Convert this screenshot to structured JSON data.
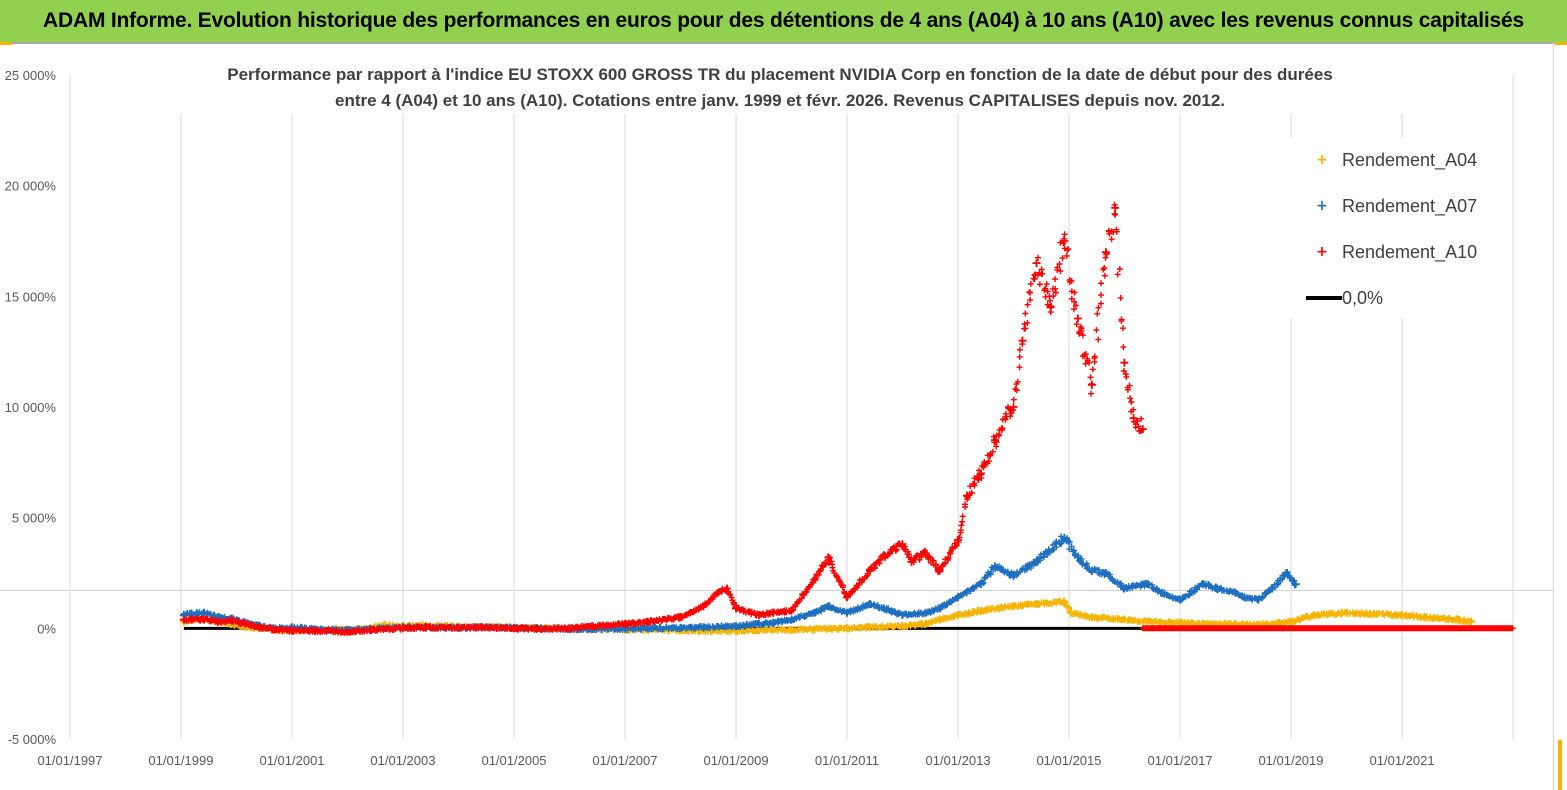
{
  "header": {
    "title": "ADAM Informe. Evolution historique des performances en euros pour des détentions de 4 ans (A04) à 10 ans (A10) avec les revenus connus capitalisés"
  },
  "colors": {
    "header_bg": "#92d050",
    "accent": "#f4b400"
  },
  "chart_data": {
    "type": "scatter",
    "title_lines": [
      "Performance par rapport à l'indice EU STOXX 600 GROSS TR  du placement NVIDIA Corp en fonction de la date de début pour des durées",
      "entre 4 (A04) et 10 ans (A10). Cotations entre janv. 1999 et févr. 2026. Revenus CAPITALISES depuis nov. 2012."
    ],
    "x_axis": {
      "type": "date",
      "range": [
        "1997-01-01",
        "2023-01-01"
      ],
      "ticks": [
        "1997-01-01",
        "1999-01-01",
        "2001-01-01",
        "2003-01-01",
        "2005-01-01",
        "2007-01-01",
        "2009-01-01",
        "2011-01-01",
        "2013-01-01",
        "2015-01-01",
        "2017-01-01",
        "2019-01-01",
        "2021-01-01"
      ],
      "tick_labels": [
        "01/01/1997",
        "01/01/1999",
        "01/01/2001",
        "01/01/2003",
        "01/01/2005",
        "01/01/2007",
        "01/01/2009",
        "01/01/2011",
        "01/01/2013",
        "01/01/2015",
        "01/01/2017",
        "01/01/2019",
        "01/01/2021"
      ]
    },
    "y_axis": {
      "ylim": [
        -5000,
        25000
      ],
      "ticks": [
        -5000,
        0,
        5000,
        10000,
        15000,
        20000,
        25000
      ],
      "tick_labels": [
        "-5 000%",
        "0%",
        "5 000%",
        "10 000%",
        "15 000%",
        "20 000%",
        "25 000%"
      ],
      "unit": "%"
    },
    "grid": {
      "horizontal": false,
      "vertical": true
    },
    "legend": {
      "position": "right"
    },
    "series": [
      {
        "name": "Rendement_A04",
        "color": "#f4b400",
        "marker": "+",
        "points": [
          [
            "1999-01-20",
            300
          ],
          [
            "1999-03-01",
            380
          ],
          [
            "1999-06-01",
            450
          ],
          [
            "1999-09-01",
            300
          ],
          [
            "1999-12-01",
            200
          ],
          [
            "2000-03-01",
            80
          ],
          [
            "2000-06-01",
            0
          ],
          [
            "2000-09-01",
            -60
          ],
          [
            "2001-01-01",
            -100
          ],
          [
            "2001-06-01",
            -80
          ],
          [
            "2002-01-01",
            -50
          ],
          [
            "2002-06-01",
            0
          ],
          [
            "2002-09-01",
            150
          ],
          [
            "2003-01-01",
            100
          ],
          [
            "2003-06-01",
            120
          ],
          [
            "2004-01-01",
            80
          ],
          [
            "2004-06-01",
            60
          ],
          [
            "2005-01-01",
            30
          ],
          [
            "2005-06-01",
            10
          ],
          [
            "2006-01-01",
            0
          ],
          [
            "2006-06-01",
            -20
          ],
          [
            "2007-01-01",
            -50
          ],
          [
            "2007-06-01",
            -60
          ],
          [
            "2008-01-01",
            -80
          ],
          [
            "2008-06-01",
            -100
          ],
          [
            "2009-01-01",
            -120
          ],
          [
            "2009-06-01",
            -80
          ],
          [
            "2010-01-01",
            -60
          ],
          [
            "2010-06-01",
            -40
          ],
          [
            "2011-01-01",
            0
          ],
          [
            "2011-06-01",
            50
          ],
          [
            "2012-01-01",
            100
          ],
          [
            "2012-06-01",
            200
          ],
          [
            "2012-09-01",
            400
          ],
          [
            "2013-01-01",
            600
          ],
          [
            "2013-06-01",
            800
          ],
          [
            "2014-01-01",
            1000
          ],
          [
            "2014-06-01",
            1100
          ],
          [
            "2014-12-01",
            1200
          ],
          [
            "2015-01-15",
            700
          ],
          [
            "2015-06-01",
            500
          ],
          [
            "2016-01-01",
            400
          ],
          [
            "2016-06-01",
            300
          ],
          [
            "2017-01-01",
            250
          ],
          [
            "2017-06-01",
            200
          ],
          [
            "2018-01-01",
            200
          ],
          [
            "2018-06-01",
            150
          ],
          [
            "2019-01-01",
            300
          ],
          [
            "2019-06-01",
            600
          ],
          [
            "2020-01-01",
            700
          ],
          [
            "2020-06-01",
            650
          ],
          [
            "2021-01-01",
            600
          ],
          [
            "2021-06-01",
            500
          ],
          [
            "2022-01-01",
            400
          ],
          [
            "2022-04-01",
            300
          ]
        ]
      },
      {
        "name": "Rendement_A07",
        "color": "#1f6fc0",
        "marker": "+",
        "points": [
          [
            "1999-01-20",
            600
          ],
          [
            "1999-03-01",
            650
          ],
          [
            "1999-06-01",
            700
          ],
          [
            "1999-09-01",
            500
          ],
          [
            "1999-12-01",
            450
          ],
          [
            "2000-03-01",
            250
          ],
          [
            "2000-06-01",
            100
          ],
          [
            "2000-09-01",
            0
          ],
          [
            "2001-01-01",
            50
          ],
          [
            "2001-06-01",
            -50
          ],
          [
            "2002-01-01",
            -80
          ],
          [
            "2002-06-01",
            -30
          ],
          [
            "2003-01-01",
            50
          ],
          [
            "2003-06-01",
            30
          ],
          [
            "2004-01-01",
            20
          ],
          [
            "2004-06-01",
            40
          ],
          [
            "2005-01-01",
            20
          ],
          [
            "2005-06-01",
            0
          ],
          [
            "2006-01-01",
            -20
          ],
          [
            "2006-06-01",
            -30
          ],
          [
            "2007-01-01",
            -20
          ],
          [
            "2007-06-01",
            0
          ],
          [
            "2008-01-01",
            20
          ],
          [
            "2008-06-01",
            50
          ],
          [
            "2009-01-01",
            100
          ],
          [
            "2009-06-01",
            200
          ],
          [
            "2009-09-01",
            250
          ],
          [
            "2010-01-01",
            400
          ],
          [
            "2010-06-01",
            700
          ],
          [
            "2010-09-01",
            1000
          ],
          [
            "2011-01-01",
            700
          ],
          [
            "2011-06-01",
            1100
          ],
          [
            "2011-09-01",
            900
          ],
          [
            "2012-01-01",
            600
          ],
          [
            "2012-06-01",
            700
          ],
          [
            "2012-09-01",
            900
          ],
          [
            "2013-01-01",
            1400
          ],
          [
            "2013-06-01",
            2000
          ],
          [
            "2013-09-01",
            2800
          ],
          [
            "2014-01-01",
            2400
          ],
          [
            "2014-06-01",
            3000
          ],
          [
            "2014-12-01",
            4100
          ],
          [
            "2015-03-01",
            3200
          ],
          [
            "2015-06-01",
            2600
          ],
          [
            "2015-09-01",
            2500
          ],
          [
            "2016-01-01",
            1800
          ],
          [
            "2016-06-01",
            2000
          ],
          [
            "2016-09-01",
            1600
          ],
          [
            "2017-01-01",
            1300
          ],
          [
            "2017-06-01",
            2000
          ],
          [
            "2017-09-01",
            1800
          ],
          [
            "2018-01-01",
            1600
          ],
          [
            "2018-03-01",
            1400
          ],
          [
            "2018-06-01",
            1300
          ],
          [
            "2018-09-01",
            1800
          ],
          [
            "2018-12-01",
            2500
          ],
          [
            "2019-02-01",
            2000
          ]
        ]
      },
      {
        "name": "Rendement_A10",
        "color": "#ff0000",
        "marker": "+",
        "points": [
          [
            "1999-01-20",
            400
          ],
          [
            "1999-06-01",
            400
          ],
          [
            "1999-09-01",
            300
          ],
          [
            "1999-12-01",
            350
          ],
          [
            "2000-03-01",
            200
          ],
          [
            "2000-06-01",
            50
          ],
          [
            "2000-09-01",
            -50
          ],
          [
            "2001-01-01",
            -100
          ],
          [
            "2001-06-01",
            -120
          ],
          [
            "2002-01-01",
            -150
          ],
          [
            "2002-06-01",
            -80
          ],
          [
            "2003-01-01",
            0
          ],
          [
            "2003-06-01",
            50
          ],
          [
            "2004-01-01",
            20
          ],
          [
            "2004-06-01",
            50
          ],
          [
            "2005-01-01",
            0
          ],
          [
            "2005-06-01",
            -20
          ],
          [
            "2006-01-01",
            0
          ],
          [
            "2006-06-01",
            100
          ],
          [
            "2007-01-01",
            200
          ],
          [
            "2007-06-01",
            300
          ],
          [
            "2008-01-01",
            500
          ],
          [
            "2008-06-01",
            1000
          ],
          [
            "2008-09-01",
            1600
          ],
          [
            "2008-11-01",
            1800
          ],
          [
            "2009-01-01",
            900
          ],
          [
            "2009-06-01",
            600
          ],
          [
            "2009-09-01",
            700
          ],
          [
            "2010-01-01",
            800
          ],
          [
            "2010-06-01",
            2200
          ],
          [
            "2010-09-01",
            3200
          ],
          [
            "2011-01-01",
            1400
          ],
          [
            "2011-06-01",
            2600
          ],
          [
            "2011-09-01",
            3300
          ],
          [
            "2012-01-01",
            3800
          ],
          [
            "2012-03-01",
            3000
          ],
          [
            "2012-06-01",
            3400
          ],
          [
            "2012-09-01",
            2600
          ],
          [
            "2013-01-01",
            4000
          ],
          [
            "2013-03-01",
            6000
          ],
          [
            "2013-06-01",
            7000
          ],
          [
            "2013-09-01",
            8500
          ],
          [
            "2014-01-01",
            10000
          ],
          [
            "2014-03-01",
            13000
          ],
          [
            "2014-06-01",
            16500
          ],
          [
            "2014-09-01",
            14500
          ],
          [
            "2014-12-01",
            17500
          ],
          [
            "2015-03-01",
            14000
          ],
          [
            "2015-06-01",
            11000
          ],
          [
            "2015-09-01",
            17000
          ],
          [
            "2015-11-01",
            19000
          ],
          [
            "2016-01-01",
            12000
          ],
          [
            "2016-03-01",
            9500
          ],
          [
            "2016-05-01",
            9000
          ]
        ]
      },
      {
        "name": "0,0%",
        "color": "#000000",
        "marker": "line",
        "points": [
          [
            "1999-01-20",
            0
          ],
          [
            "2016-05-01",
            0
          ]
        ]
      }
    ]
  }
}
